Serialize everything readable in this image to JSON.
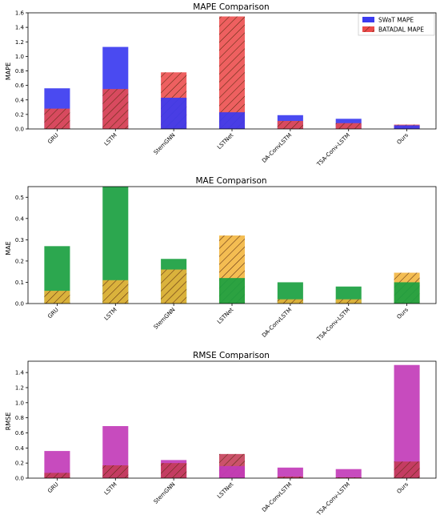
{
  "colors": {
    "swat": "#3b3bf0",
    "batadal": "#ec4a4a",
    "mae_swat": "#1aa040",
    "mae_batadal": "#f2b43a",
    "rmse_swat": "#c23cb8",
    "rmse_batadal": "#c43a55",
    "hatch": "#5a2a10"
  },
  "chart_data": [
    {
      "type": "bar",
      "title": "MAPE Comparison",
      "ylabel": "MAPE",
      "xlabel": "",
      "ylim": [
        0,
        1.6
      ],
      "yticks": [
        "0.0",
        "0.2",
        "0.4",
        "0.6",
        "0.8",
        "1.0",
        "1.2",
        "1.4",
        "1.6"
      ],
      "categories": [
        "GRU",
        "LSTM",
        "StemGNN",
        "LSTNet",
        "DA-ConvLSTM",
        "TSA-Conv-LSTM",
        "Ours"
      ],
      "series": [
        {
          "name": "SWaT MAPE",
          "values": [
            0.56,
            1.13,
            0.43,
            0.23,
            0.19,
            0.14,
            0.05
          ]
        },
        {
          "name": "BATADAL MAPE",
          "values": [
            0.28,
            0.55,
            0.78,
            1.55,
            0.11,
            0.08,
            0.06
          ]
        }
      ],
      "legend": "top-right"
    },
    {
      "type": "bar",
      "title": "MAE Comparison",
      "ylabel": "MAE",
      "xlabel": "",
      "ylim": [
        0,
        0.55
      ],
      "yticks": [
        "0.0",
        "0.1",
        "0.2",
        "0.3",
        "0.4",
        "0.5"
      ],
      "categories": [
        "GRU",
        "LSTM",
        "StemGNN",
        "LSTNet",
        "DA-ConvLSTM",
        "TSA-Conv-LSTM",
        "Ours"
      ],
      "series": [
        {
          "values": [
            0.27,
            0.55,
            0.21,
            0.12,
            0.1,
            0.08,
            0.1
          ]
        },
        {
          "values": [
            0.06,
            0.11,
            0.16,
            0.32,
            0.02,
            0.02,
            0.145
          ]
        }
      ]
    },
    {
      "type": "bar",
      "title": "RMSE Comparison",
      "ylabel": "RMSE",
      "xlabel": "",
      "ylim": [
        0,
        1.55
      ],
      "yticks": [
        "0.0",
        "0.2",
        "0.4",
        "0.6",
        "0.8",
        "1.0",
        "1.2",
        "1.4"
      ],
      "categories": [
        "GRU",
        "LSTM",
        "StemGNN",
        "LSTNet",
        "DA-ConvLSTM",
        "TSA-Conv-LSTM",
        "Ours"
      ],
      "series": [
        {
          "values": [
            0.36,
            0.69,
            0.24,
            0.16,
            0.14,
            0.12,
            1.5
          ]
        },
        {
          "values": [
            0.07,
            0.17,
            0.2,
            0.32,
            0.02,
            0.01,
            0.22
          ]
        }
      ]
    }
  ]
}
